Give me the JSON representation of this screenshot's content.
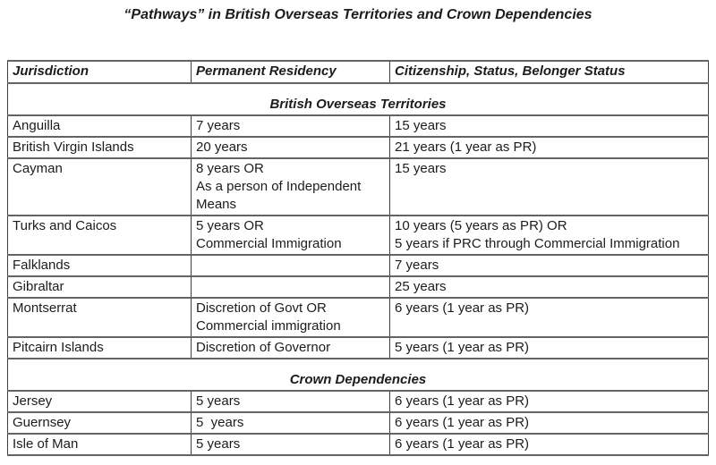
{
  "title": "“Pathways” in British Overseas Territories and Crown Dependencies",
  "table": {
    "columns": [
      "Jurisdiction",
      "Permanent Residency",
      "Citizenship, Status, Belonger Status"
    ],
    "rows": [
      {
        "type": "section",
        "label": "British Overseas Territories"
      },
      {
        "type": "data",
        "jurisdiction": "Anguilla",
        "permanent_residency": "7 years",
        "citizenship": "15 years"
      },
      {
        "type": "data",
        "jurisdiction": "British Virgin Islands",
        "permanent_residency": "20 years",
        "citizenship": "21 years (1 year as PR)"
      },
      {
        "type": "data",
        "jurisdiction": "Cayman",
        "permanent_residency": "8 years OR\nAs a person of Independent\nMeans",
        "citizenship": "15 years"
      },
      {
        "type": "data",
        "jurisdiction": "Turks and Caicos",
        "permanent_residency": "5 years OR\nCommercial Immigration",
        "citizenship": "10 years (5 years as PR) OR\n5 years if PRC through Commercial Immigration"
      },
      {
        "type": "data",
        "jurisdiction": "Falklands",
        "permanent_residency": "",
        "citizenship": "7 years"
      },
      {
        "type": "data",
        "jurisdiction": "Gibraltar",
        "permanent_residency": "",
        "citizenship": "25 years"
      },
      {
        "type": "data",
        "jurisdiction": "Montserrat",
        "permanent_residency": "Discretion of Govt OR\nCommercial immigration",
        "citizenship": "6 years (1 year as PR)"
      },
      {
        "type": "data",
        "jurisdiction": "Pitcairn Islands",
        "permanent_residency": "Discretion of Governor",
        "citizenship": "5 years (1 year as PR)"
      },
      {
        "type": "section",
        "label": "Crown Dependencies"
      },
      {
        "type": "data",
        "jurisdiction": "Jersey",
        "permanent_residency": "5 years",
        "citizenship": "6 years (1 year as PR)"
      },
      {
        "type": "data",
        "jurisdiction": "Guernsey",
        "permanent_residency": "5  years",
        "citizenship": "6 years (1 year as PR)"
      },
      {
        "type": "data",
        "jurisdiction": "Isle of Man",
        "permanent_residency": "5 years",
        "citizenship": "6 years (1 year as PR)"
      }
    ]
  }
}
